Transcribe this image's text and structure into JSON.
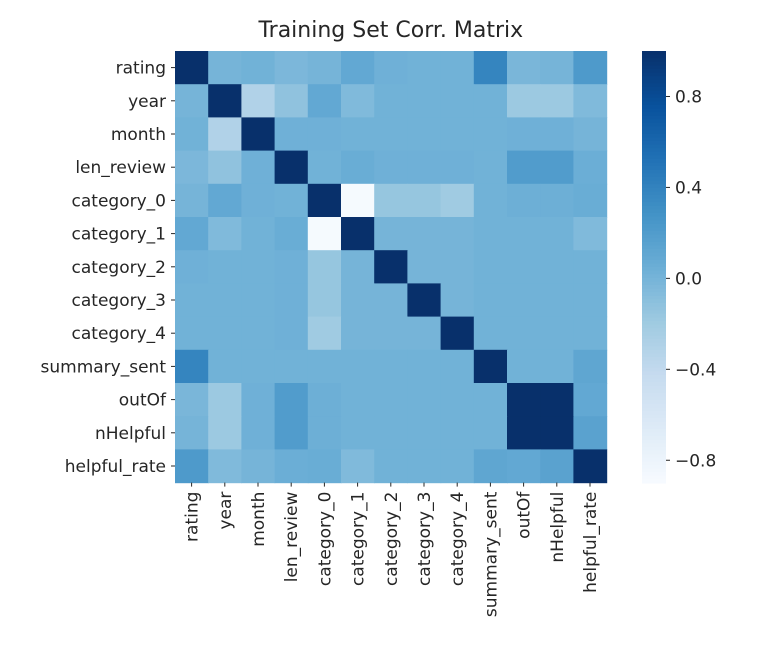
{
  "chart_data": {
    "type": "heatmap",
    "title": "Training Set Corr. Matrix",
    "colormap": "Blues",
    "vmin": -0.9,
    "vmax": 1.0,
    "rows": [
      "rating",
      "year",
      "month",
      "len_review",
      "category_0",
      "category_1",
      "category_2",
      "category_3",
      "category_4",
      "summary_sent",
      "outOf",
      "nHelpful",
      "helpful_rate"
    ],
    "columns": [
      "rating",
      "year",
      "month",
      "len_review",
      "category_0",
      "category_1",
      "category_2",
      "category_3",
      "category_4",
      "summary_sent",
      "outOf",
      "nHelpful",
      "helpful_rate"
    ],
    "values": [
      [
        1.0,
        0.0,
        0.02,
        -0.03,
        0.0,
        0.1,
        0.03,
        0.02,
        0.02,
        0.38,
        -0.02,
        0.0,
        0.22
      ],
      [
        0.0,
        1.0,
        -0.3,
        -0.12,
        0.1,
        -0.05,
        0.02,
        0.02,
        0.02,
        0.02,
        -0.18,
        -0.18,
        -0.05
      ],
      [
        0.02,
        -0.3,
        1.0,
        0.03,
        0.03,
        0.02,
        0.02,
        0.02,
        0.02,
        0.02,
        0.03,
        0.03,
        0.0
      ],
      [
        -0.03,
        -0.12,
        0.03,
        1.0,
        0.02,
        0.06,
        0.03,
        0.03,
        0.03,
        0.02,
        0.2,
        0.2,
        0.05
      ],
      [
        0.0,
        0.1,
        0.03,
        0.02,
        1.0,
        -0.88,
        -0.15,
        -0.15,
        -0.2,
        0.02,
        0.04,
        0.04,
        0.06
      ],
      [
        0.1,
        -0.05,
        0.02,
        0.06,
        -0.88,
        1.0,
        0.0,
        0.0,
        0.0,
        0.02,
        0.02,
        0.02,
        -0.05
      ],
      [
        0.03,
        0.02,
        0.02,
        0.03,
        -0.15,
        0.0,
        1.0,
        0.0,
        0.0,
        0.02,
        0.02,
        0.02,
        0.02
      ],
      [
        0.02,
        0.02,
        0.02,
        0.03,
        -0.15,
        0.0,
        0.0,
        1.0,
        0.0,
        0.02,
        0.02,
        0.02,
        0.02
      ],
      [
        0.02,
        0.02,
        0.02,
        0.03,
        -0.2,
        0.0,
        0.0,
        0.0,
        1.0,
        0.02,
        0.02,
        0.02,
        0.02
      ],
      [
        0.38,
        0.02,
        0.02,
        0.02,
        0.02,
        0.02,
        0.02,
        0.02,
        0.02,
        1.0,
        0.02,
        0.02,
        0.12
      ],
      [
        -0.02,
        -0.18,
        0.03,
        0.2,
        0.04,
        0.02,
        0.02,
        0.02,
        0.02,
        0.02,
        1.0,
        1.0,
        0.1
      ],
      [
        0.0,
        -0.18,
        0.03,
        0.2,
        0.04,
        0.02,
        0.02,
        0.02,
        0.02,
        0.02,
        1.0,
        1.0,
        0.15
      ],
      [
        0.22,
        -0.05,
        0.0,
        0.05,
        0.06,
        -0.05,
        0.02,
        0.02,
        0.02,
        0.12,
        0.1,
        0.15,
        1.0
      ]
    ],
    "colorbar_ticks": [
      "0.8",
      "0.4",
      "0.0",
      "−0.4",
      "−0.8"
    ],
    "colorbar_tick_values": [
      0.8,
      0.4,
      0.0,
      -0.4,
      -0.8
    ],
    "grid": false
  }
}
